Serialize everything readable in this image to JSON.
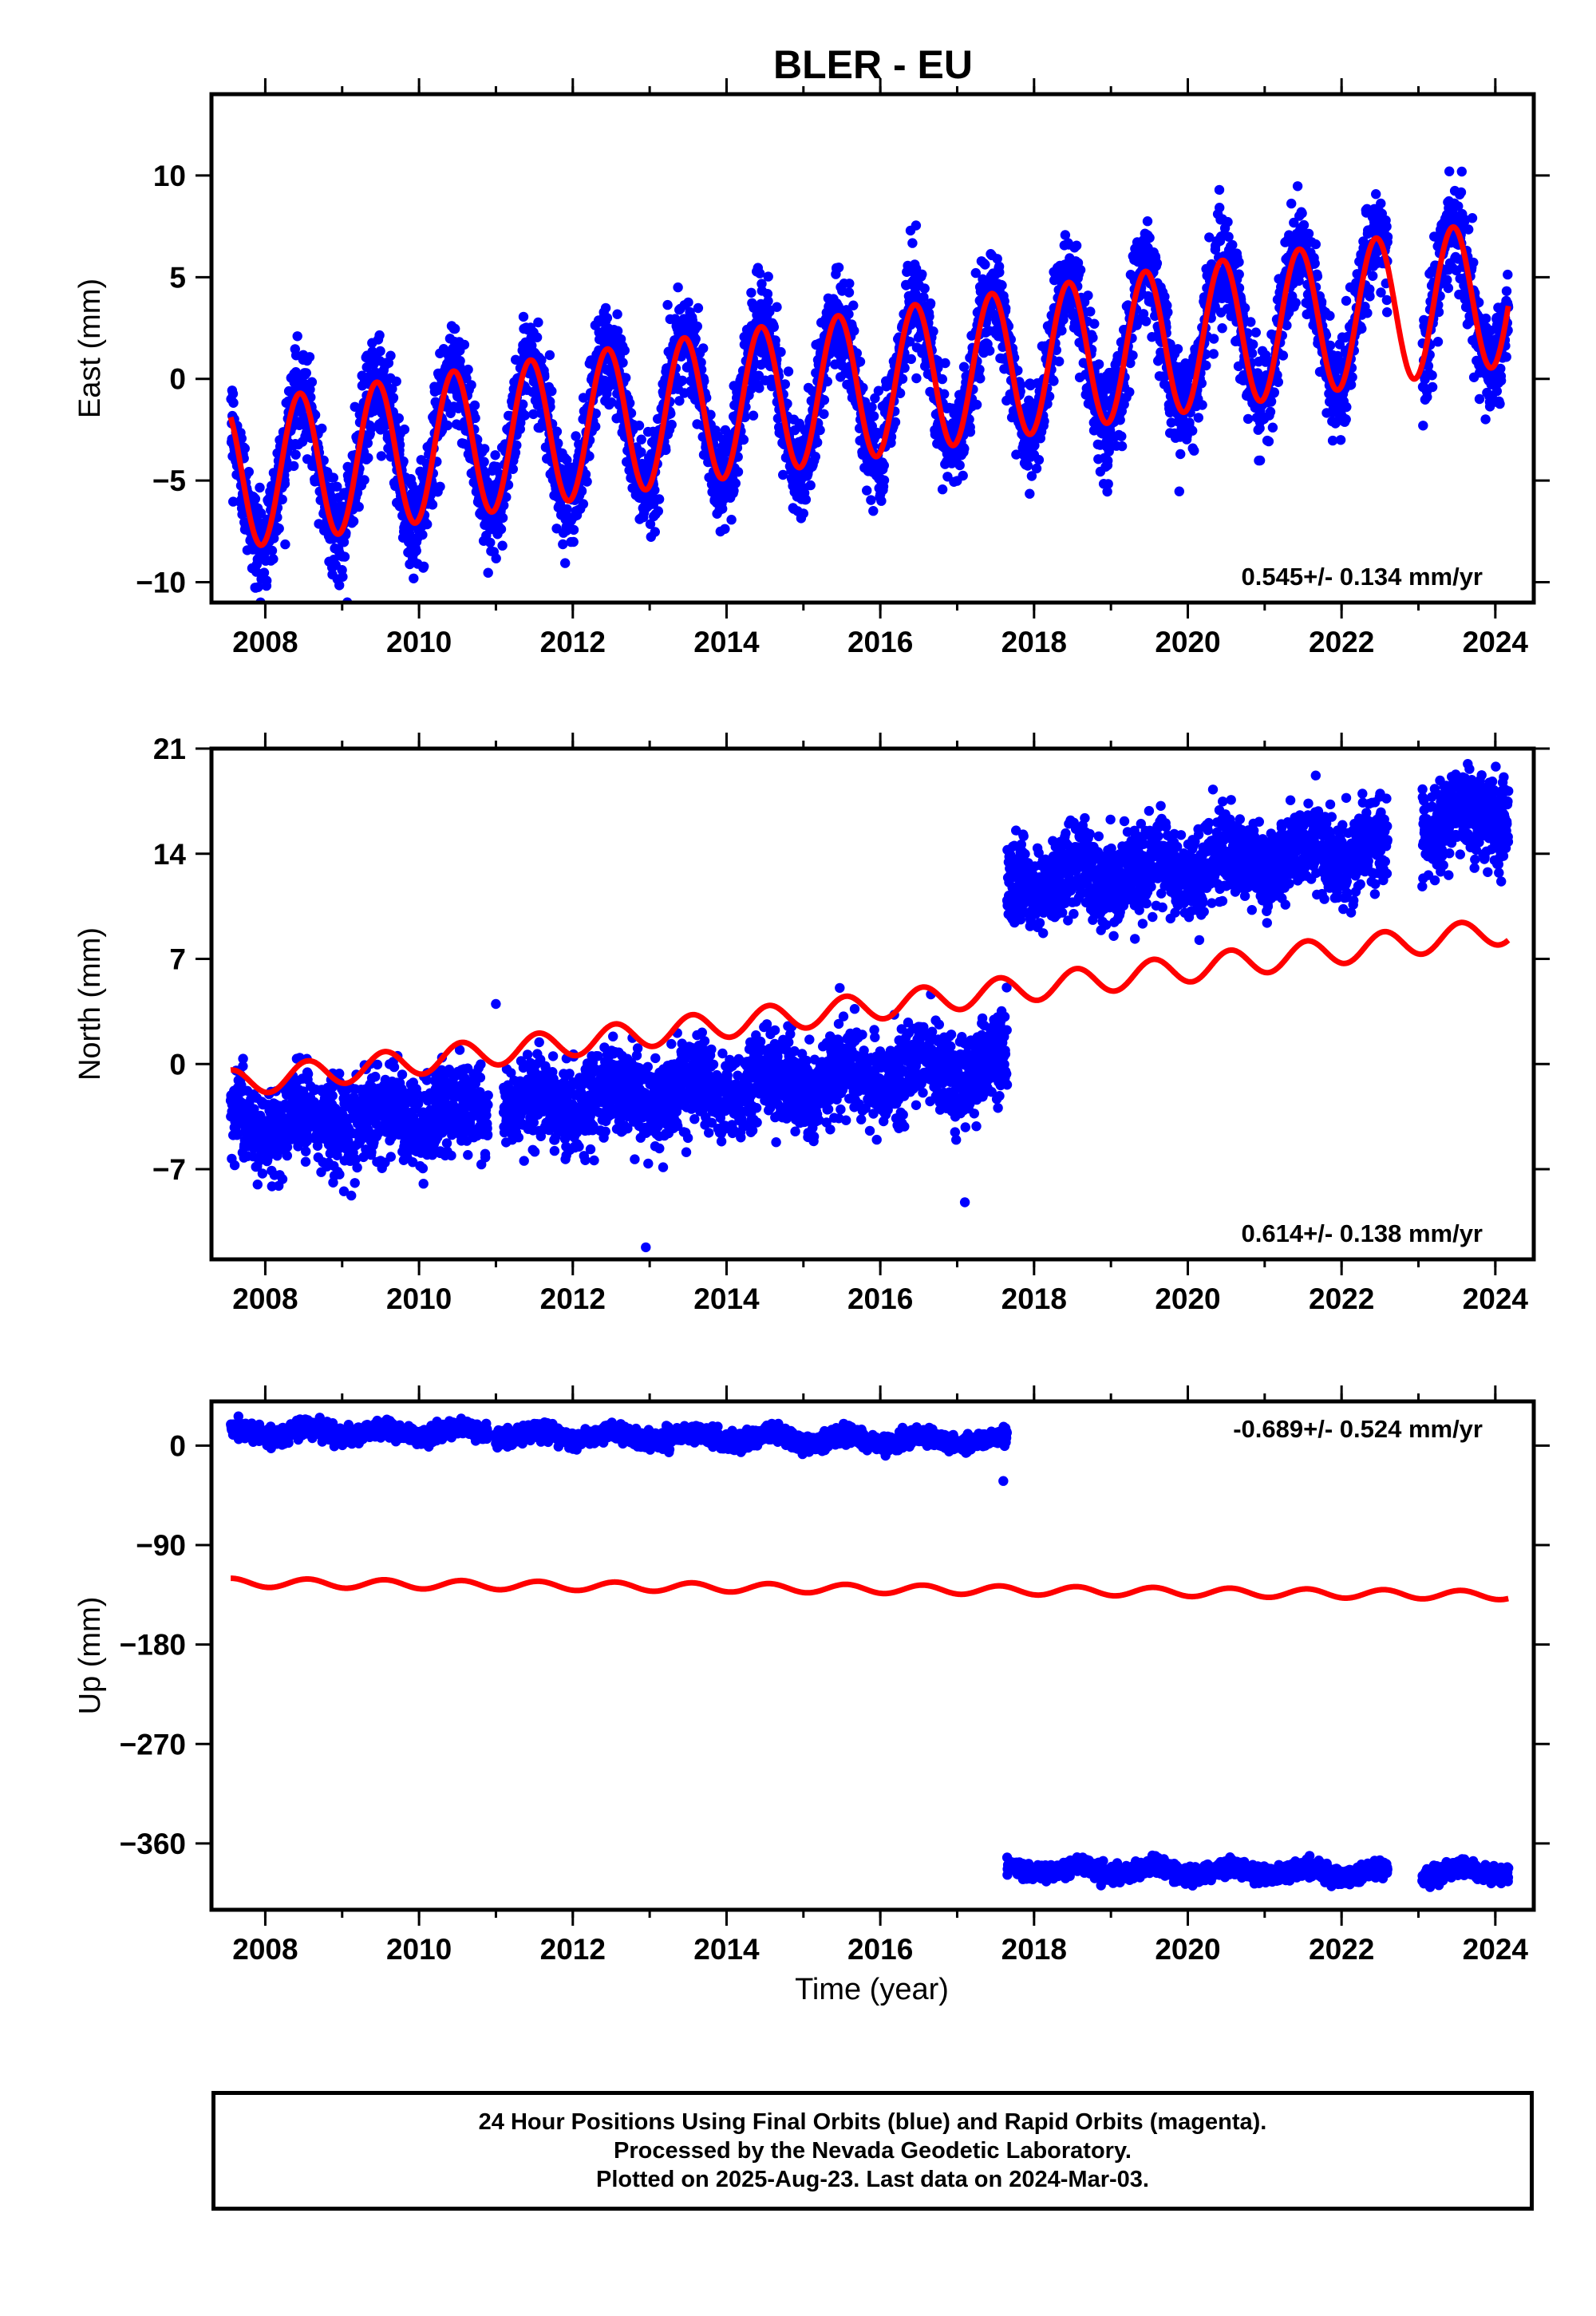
{
  "title": "BLER - EU",
  "colors": {
    "observations": "#0000ff",
    "model": "#ff0000",
    "rapid_orbits": "#ff00ff",
    "frame": "#000000"
  },
  "footer": {
    "line1": "24 Hour Positions Using Final Orbits (blue) and Rapid Orbits (magenta).",
    "line2": "Processed by the Nevada Geodetic Laboratory.",
    "line3": "Plotted on 2025-Aug-23. Last data on 2024-Mar-03."
  },
  "chart_data": [
    {
      "type": "scatter",
      "component": "east",
      "title": "BLER - EU",
      "ylabel": "East (mm)",
      "xlabel": "",
      "xlim": [
        2007.3,
        2024.5
      ],
      "ylim": [
        -11,
        14
      ],
      "xticks": [
        "2008",
        "2010",
        "2012",
        "2014",
        "2016",
        "2018",
        "2020",
        "2022",
        "2024"
      ],
      "yticks": [
        "−10",
        "−5",
        "0",
        "5",
        "10"
      ],
      "annotation": "0.545+/- 0.134 mm/yr",
      "series": [
        {
          "kind": "points",
          "x_range": [
            2007.55,
            2024.17
          ],
          "gaps": [
            [
              2022.6,
              2023.05
            ]
          ],
          "trend": {
            "at_2007_55": -4.8,
            "slope_per_yr": 0.545
          },
          "seasonal_amplitude": 3.6,
          "seasonal_peak_phase": 0.45,
          "scatter_sd": 1.2
        },
        {
          "kind": "model",
          "x_range": [
            2007.55,
            2024.17
          ],
          "trend": {
            "at_2007_55": -4.8,
            "slope_per_yr": 0.545
          },
          "seasonal_amplitude": 3.6,
          "seasonal_peak_phase": 0.45
        }
      ]
    },
    {
      "type": "scatter",
      "component": "north",
      "ylabel": "North (mm)",
      "xlabel": "",
      "xlim": [
        2007.3,
        2024.5
      ],
      "ylim": [
        -13,
        21
      ],
      "xticks": [
        "2008",
        "2010",
        "2012",
        "2014",
        "2016",
        "2018",
        "2020",
        "2022",
        "2024"
      ],
      "yticks": [
        "−7",
        "0",
        "7",
        "14",
        "21"
      ],
      "annotation": "0.614+/- 0.138 mm/yr",
      "series": [
        {
          "kind": "points",
          "segments": [
            {
              "x_range": [
                2007.55,
                2010.9
              ],
              "level_start": -4.0,
              "level_end": -3.0
            },
            {
              "x_range": [
                2011.1,
                2017.65
              ],
              "level_start": -2.8,
              "level_end": 0.0
            },
            {
              "x_range": [
                2017.65,
                2022.6
              ],
              "level_start": 12.0,
              "level_end": 14.5
            },
            {
              "x_range": [
                2023.05,
                2024.17
              ],
              "level_start": 16.0,
              "level_end": 16.8
            }
          ],
          "seasonal_amplitude": 0.8,
          "scatter_sd": 1.4,
          "outliers": [
            [
              2012.95,
              -12.2
            ],
            [
              2017.1,
              -9.2
            ],
            [
              2011.0,
              4.0
            ],
            [
              2017.2,
              1.5
            ]
          ]
        },
        {
          "kind": "model",
          "x_range": [
            2007.55,
            2024.17
          ],
          "trend": {
            "at_2007_55": -1.3,
            "slope_per_yr": 0.614
          },
          "seasonal_amplitude": 0.9,
          "seasonal_peak_phase": 0.55
        }
      ]
    },
    {
      "type": "scatter",
      "component": "up",
      "ylabel": "Up (mm)",
      "xlabel": "Time (year)",
      "xlim": [
        2007.3,
        2024.5
      ],
      "ylim": [
        -420,
        40
      ],
      "xticks": [
        "2008",
        "2010",
        "2012",
        "2014",
        "2016",
        "2018",
        "2020",
        "2022",
        "2024"
      ],
      "yticks": [
        "−360",
        "−270",
        "−180",
        "−90",
        "0"
      ],
      "annotation": "-0.689+/- 0.524 mm/yr",
      "series": [
        {
          "kind": "points",
          "segments": [
            {
              "x_range": [
                2007.55,
                2010.9
              ],
              "level_start": 12,
              "level_end": 12
            },
            {
              "x_range": [
                2011.0,
                2017.65
              ],
              "level_start": 10,
              "level_end": 4
            },
            {
              "x_range": [
                2017.65,
                2022.6
              ],
              "level_start": -383,
              "level_end": -387
            },
            {
              "x_range": [
                2023.05,
                2024.17
              ],
              "level_start": -387,
              "level_end": -384
            }
          ],
          "seasonal_amplitude": 4,
          "scatter_sd": 3.5,
          "outliers": [
            [
              2017.6,
              -32
            ]
          ]
        },
        {
          "kind": "model",
          "x_range": [
            2007.55,
            2024.17
          ],
          "trend": {
            "at_2007_55": -124,
            "slope_per_yr": -0.689
          },
          "seasonal_amplitude": 4,
          "seasonal_peak_phase": 0.55
        }
      ]
    }
  ]
}
